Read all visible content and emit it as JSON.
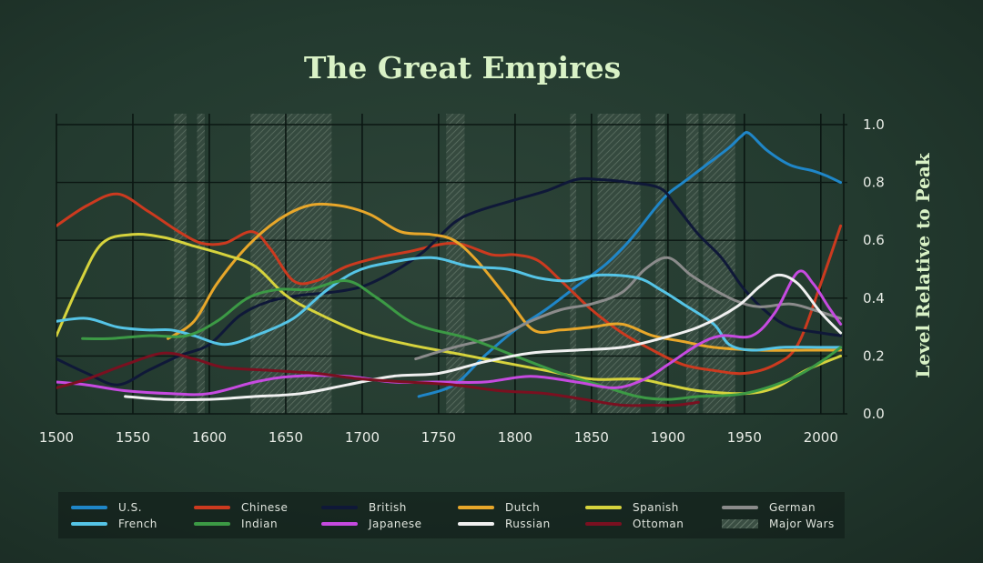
{
  "chart_data": {
    "type": "line",
    "title": "The Great Empires",
    "xlabel": "",
    "ylabel": "Level Relative to Peak",
    "xlim": [
      1500,
      2015
    ],
    "ylim": [
      0,
      1.0
    ],
    "x_ticks": [
      1500,
      1550,
      1600,
      1650,
      1700,
      1750,
      1800,
      1850,
      1900,
      1950,
      2000
    ],
    "y_ticks": [
      0.0,
      0.2,
      0.4,
      0.6,
      0.8,
      1.0
    ],
    "y_tick_labels": [
      "0.0",
      "0.2",
      "0.4",
      "0.6",
      "0.8",
      "1.0"
    ],
    "grid": true,
    "legend_position": "bottom",
    "shaded_label": "Major Wars",
    "shaded_periods": [
      [
        1577,
        1585
      ],
      [
        1592,
        1597
      ],
      [
        1627,
        1680
      ],
      [
        1755,
        1767
      ],
      [
        1836,
        1840
      ],
      [
        1854,
        1882
      ],
      [
        1892,
        1898
      ],
      [
        1912,
        1920
      ],
      [
        1923,
        1944
      ]
    ],
    "series": [
      {
        "name": "U.S.",
        "color": "#1f86c8",
        "points": [
          [
            1737,
            0.06
          ],
          [
            1760,
            0.1
          ],
          [
            1780,
            0.2
          ],
          [
            1800,
            0.29
          ],
          [
            1820,
            0.36
          ],
          [
            1840,
            0.44
          ],
          [
            1860,
            0.52
          ],
          [
            1875,
            0.6
          ],
          [
            1890,
            0.7
          ],
          [
            1900,
            0.76
          ],
          [
            1910,
            0.8
          ],
          [
            1925,
            0.86
          ],
          [
            1940,
            0.92
          ],
          [
            1948,
            0.96
          ],
          [
            1953,
            0.97
          ],
          [
            1965,
            0.91
          ],
          [
            1980,
            0.86
          ],
          [
            1995,
            0.84
          ],
          [
            2005,
            0.82
          ],
          [
            2013,
            0.8
          ]
        ]
      },
      {
        "name": "Chinese",
        "color": "#cc3a1f",
        "points": [
          [
            1500,
            0.65
          ],
          [
            1520,
            0.72
          ],
          [
            1540,
            0.76
          ],
          [
            1560,
            0.7
          ],
          [
            1580,
            0.63
          ],
          [
            1595,
            0.59
          ],
          [
            1610,
            0.59
          ],
          [
            1628,
            0.63
          ],
          [
            1640,
            0.57
          ],
          [
            1655,
            0.46
          ],
          [
            1670,
            0.46
          ],
          [
            1690,
            0.51
          ],
          [
            1710,
            0.54
          ],
          [
            1730,
            0.56
          ],
          [
            1760,
            0.59
          ],
          [
            1785,
            0.55
          ],
          [
            1800,
            0.55
          ],
          [
            1815,
            0.53
          ],
          [
            1830,
            0.46
          ],
          [
            1850,
            0.36
          ],
          [
            1870,
            0.28
          ],
          [
            1890,
            0.22
          ],
          [
            1910,
            0.17
          ],
          [
            1930,
            0.15
          ],
          [
            1950,
            0.14
          ],
          [
            1970,
            0.17
          ],
          [
            1985,
            0.24
          ],
          [
            2000,
            0.45
          ],
          [
            2013,
            0.65
          ]
        ]
      },
      {
        "name": "British",
        "color": "#0f1838",
        "points": [
          [
            1500,
            0.19
          ],
          [
            1520,
            0.14
          ],
          [
            1540,
            0.1
          ],
          [
            1560,
            0.15
          ],
          [
            1580,
            0.2
          ],
          [
            1600,
            0.24
          ],
          [
            1620,
            0.34
          ],
          [
            1640,
            0.39
          ],
          [
            1660,
            0.41
          ],
          [
            1680,
            0.42
          ],
          [
            1700,
            0.44
          ],
          [
            1720,
            0.49
          ],
          [
            1740,
            0.56
          ],
          [
            1760,
            0.66
          ],
          [
            1775,
            0.7
          ],
          [
            1800,
            0.74
          ],
          [
            1820,
            0.77
          ],
          [
            1840,
            0.81
          ],
          [
            1855,
            0.81
          ],
          [
            1875,
            0.8
          ],
          [
            1895,
            0.78
          ],
          [
            1905,
            0.72
          ],
          [
            1920,
            0.62
          ],
          [
            1935,
            0.54
          ],
          [
            1950,
            0.43
          ],
          [
            1965,
            0.35
          ],
          [
            1980,
            0.3
          ],
          [
            2000,
            0.28
          ],
          [
            2013,
            0.27
          ]
        ]
      },
      {
        "name": "Dutch",
        "color": "#e8a72a",
        "points": [
          [
            1573,
            0.26
          ],
          [
            1590,
            0.32
          ],
          [
            1605,
            0.45
          ],
          [
            1625,
            0.58
          ],
          [
            1645,
            0.67
          ],
          [
            1665,
            0.72
          ],
          [
            1685,
            0.72
          ],
          [
            1705,
            0.69
          ],
          [
            1725,
            0.63
          ],
          [
            1745,
            0.62
          ],
          [
            1760,
            0.6
          ],
          [
            1775,
            0.53
          ],
          [
            1795,
            0.4
          ],
          [
            1812,
            0.29
          ],
          [
            1830,
            0.29
          ],
          [
            1850,
            0.3
          ],
          [
            1870,
            0.31
          ],
          [
            1890,
            0.27
          ],
          [
            1910,
            0.25
          ],
          [
            1930,
            0.23
          ],
          [
            1960,
            0.22
          ],
          [
            1990,
            0.22
          ],
          [
            2013,
            0.22
          ]
        ]
      },
      {
        "name": "Spanish",
        "color": "#d6d33d",
        "points": [
          [
            1500,
            0.27
          ],
          [
            1515,
            0.45
          ],
          [
            1530,
            0.59
          ],
          [
            1550,
            0.62
          ],
          [
            1570,
            0.61
          ],
          [
            1590,
            0.58
          ],
          [
            1610,
            0.55
          ],
          [
            1630,
            0.51
          ],
          [
            1650,
            0.41
          ],
          [
            1670,
            0.35
          ],
          [
            1700,
            0.28
          ],
          [
            1730,
            0.24
          ],
          [
            1760,
            0.21
          ],
          [
            1790,
            0.18
          ],
          [
            1820,
            0.15
          ],
          [
            1850,
            0.12
          ],
          [
            1880,
            0.12
          ],
          [
            1900,
            0.1
          ],
          [
            1920,
            0.08
          ],
          [
            1950,
            0.07
          ],
          [
            1970,
            0.09
          ],
          [
            1990,
            0.15
          ],
          [
            2013,
            0.2
          ]
        ]
      },
      {
        "name": "German",
        "color": "#8b8b8b",
        "points": [
          [
            1735,
            0.19
          ],
          [
            1760,
            0.23
          ],
          [
            1790,
            0.27
          ],
          [
            1810,
            0.32
          ],
          [
            1830,
            0.36
          ],
          [
            1850,
            0.38
          ],
          [
            1870,
            0.42
          ],
          [
            1885,
            0.5
          ],
          [
            1900,
            0.54
          ],
          [
            1915,
            0.48
          ],
          [
            1930,
            0.43
          ],
          [
            1945,
            0.39
          ],
          [
            1960,
            0.37
          ],
          [
            1980,
            0.38
          ],
          [
            1995,
            0.36
          ],
          [
            2013,
            0.33
          ]
        ]
      },
      {
        "name": "French",
        "color": "#55c4e6",
        "points": [
          [
            1500,
            0.32
          ],
          [
            1520,
            0.33
          ],
          [
            1540,
            0.3
          ],
          [
            1560,
            0.29
          ],
          [
            1575,
            0.29
          ],
          [
            1590,
            0.27
          ],
          [
            1610,
            0.24
          ],
          [
            1630,
            0.27
          ],
          [
            1655,
            0.33
          ],
          [
            1675,
            0.42
          ],
          [
            1695,
            0.49
          ],
          [
            1715,
            0.52
          ],
          [
            1745,
            0.54
          ],
          [
            1770,
            0.51
          ],
          [
            1795,
            0.5
          ],
          [
            1815,
            0.47
          ],
          [
            1835,
            0.46
          ],
          [
            1855,
            0.48
          ],
          [
            1880,
            0.47
          ],
          [
            1895,
            0.43
          ],
          [
            1910,
            0.38
          ],
          [
            1930,
            0.31
          ],
          [
            1940,
            0.24
          ],
          [
            1955,
            0.22
          ],
          [
            1975,
            0.23
          ],
          [
            2000,
            0.23
          ],
          [
            2013,
            0.23
          ]
        ]
      },
      {
        "name": "Indian",
        "color": "#3c9a45",
        "points": [
          [
            1517,
            0.26
          ],
          [
            1535,
            0.26
          ],
          [
            1560,
            0.27
          ],
          [
            1585,
            0.27
          ],
          [
            1605,
            0.32
          ],
          [
            1625,
            0.4
          ],
          [
            1645,
            0.43
          ],
          [
            1665,
            0.43
          ],
          [
            1690,
            0.46
          ],
          [
            1710,
            0.4
          ],
          [
            1735,
            0.31
          ],
          [
            1770,
            0.26
          ],
          [
            1800,
            0.2
          ],
          [
            1830,
            0.14
          ],
          [
            1855,
            0.1
          ],
          [
            1880,
            0.06
          ],
          [
            1900,
            0.05
          ],
          [
            1920,
            0.06
          ],
          [
            1950,
            0.07
          ],
          [
            1980,
            0.12
          ],
          [
            2000,
            0.18
          ],
          [
            2013,
            0.23
          ]
        ]
      },
      {
        "name": "Japanese",
        "color": "#c64ae0",
        "points": [
          [
            1500,
            0.11
          ],
          [
            1520,
            0.1
          ],
          [
            1545,
            0.08
          ],
          [
            1575,
            0.07
          ],
          [
            1600,
            0.07
          ],
          [
            1630,
            0.11
          ],
          [
            1655,
            0.13
          ],
          [
            1690,
            0.13
          ],
          [
            1720,
            0.11
          ],
          [
            1750,
            0.11
          ],
          [
            1780,
            0.11
          ],
          [
            1810,
            0.13
          ],
          [
            1840,
            0.11
          ],
          [
            1865,
            0.09
          ],
          [
            1885,
            0.12
          ],
          [
            1900,
            0.17
          ],
          [
            1920,
            0.24
          ],
          [
            1935,
            0.27
          ],
          [
            1955,
            0.27
          ],
          [
            1970,
            0.35
          ],
          [
            1985,
            0.49
          ],
          [
            1995,
            0.45
          ],
          [
            2005,
            0.37
          ],
          [
            2013,
            0.31
          ]
        ]
      },
      {
        "name": "Russian",
        "color": "#f0f0f0",
        "points": [
          [
            1545,
            0.06
          ],
          [
            1570,
            0.05
          ],
          [
            1600,
            0.05
          ],
          [
            1630,
            0.06
          ],
          [
            1660,
            0.07
          ],
          [
            1690,
            0.1
          ],
          [
            1720,
            0.13
          ],
          [
            1750,
            0.14
          ],
          [
            1780,
            0.18
          ],
          [
            1810,
            0.21
          ],
          [
            1840,
            0.22
          ],
          [
            1870,
            0.23
          ],
          [
            1895,
            0.26
          ],
          [
            1920,
            0.3
          ],
          [
            1945,
            0.37
          ],
          [
            1960,
            0.44
          ],
          [
            1972,
            0.48
          ],
          [
            1985,
            0.45
          ],
          [
            2000,
            0.35
          ],
          [
            2013,
            0.28
          ]
        ]
      },
      {
        "name": "Ottoman",
        "color": "#7a1020",
        "points": [
          [
            1500,
            0.09
          ],
          [
            1520,
            0.12
          ],
          [
            1545,
            0.17
          ],
          [
            1570,
            0.21
          ],
          [
            1590,
            0.19
          ],
          [
            1610,
            0.16
          ],
          [
            1640,
            0.15
          ],
          [
            1670,
            0.14
          ],
          [
            1700,
            0.12
          ],
          [
            1730,
            0.11
          ],
          [
            1760,
            0.1
          ],
          [
            1790,
            0.08
          ],
          [
            1820,
            0.07
          ],
          [
            1845,
            0.05
          ],
          [
            1870,
            0.03
          ],
          [
            1890,
            0.03
          ],
          [
            1905,
            0.03
          ],
          [
            1920,
            0.04
          ]
        ]
      }
    ]
  }
}
